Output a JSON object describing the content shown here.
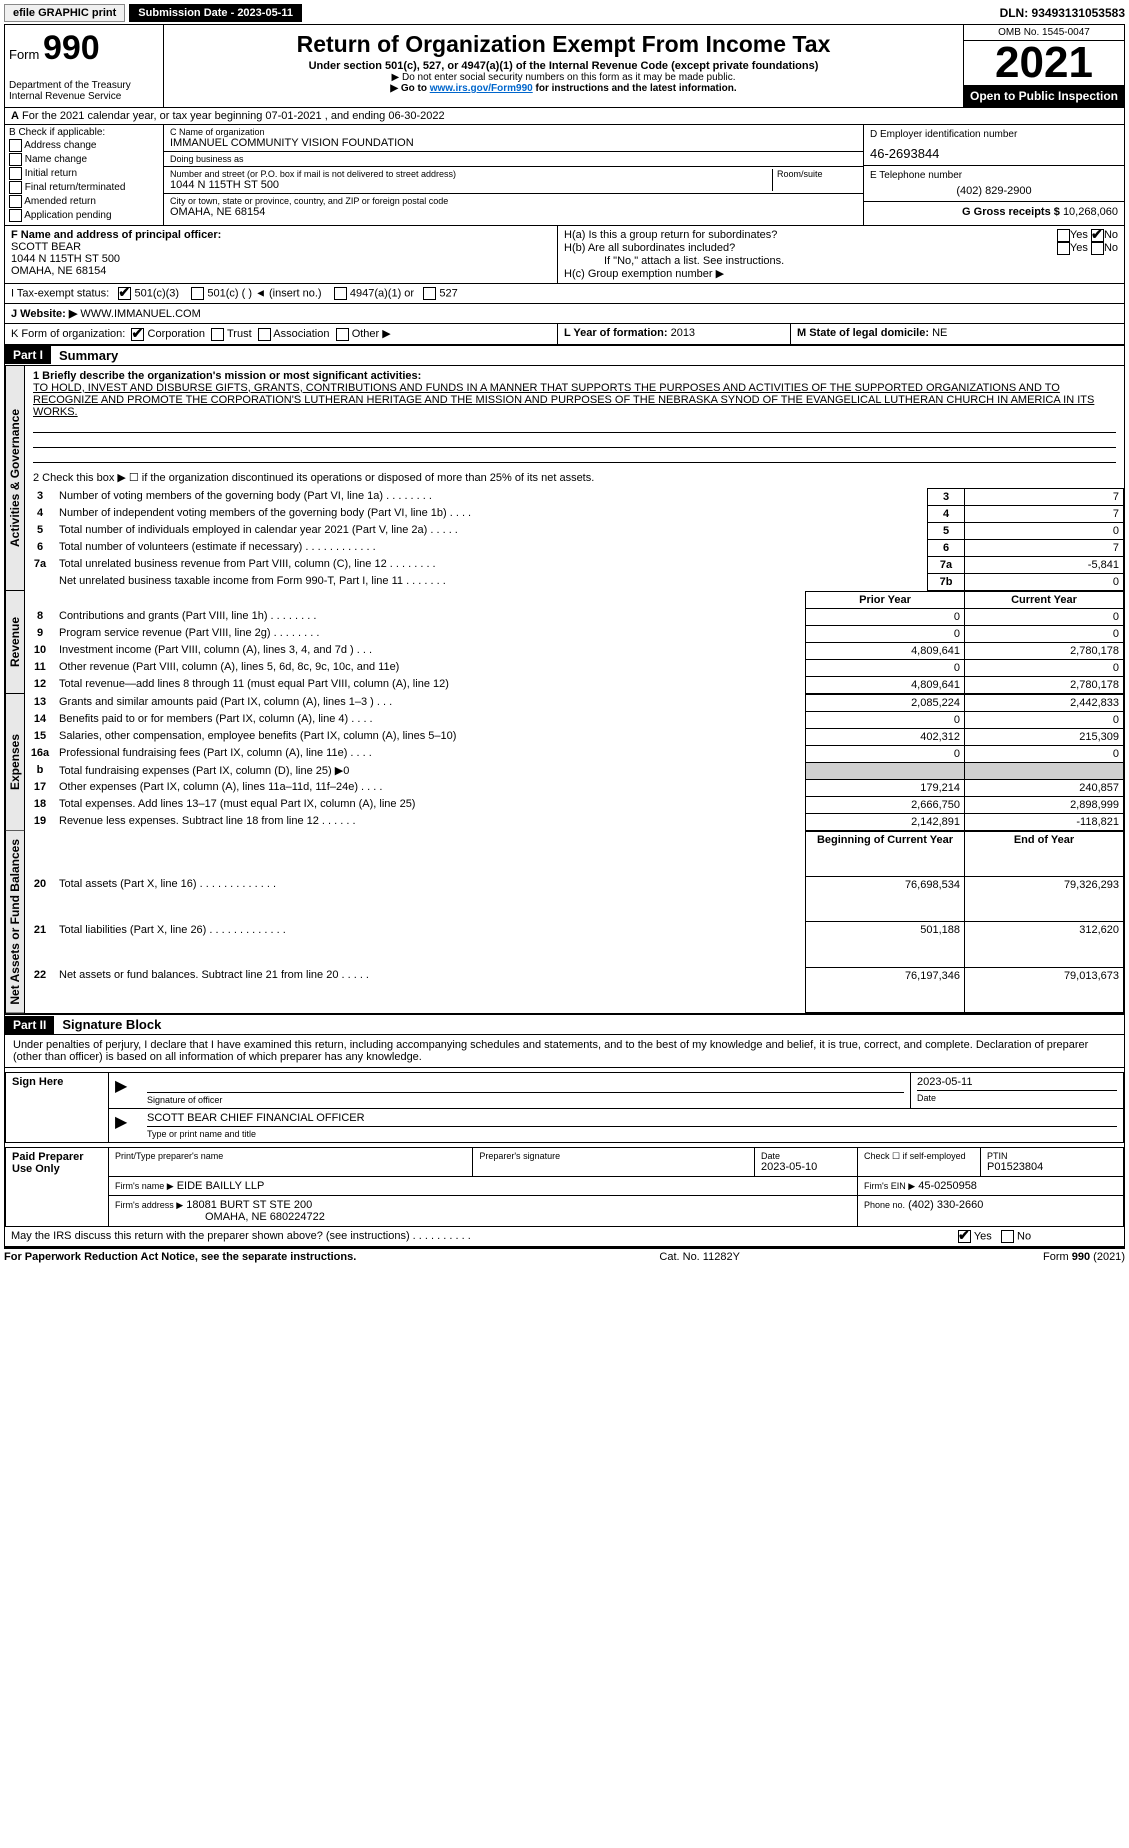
{
  "topbar": {
    "efile": "efile GRAPHIC print",
    "submission_btn": "Submission Date - 2023-05-11",
    "dln": "DLN: 93493131053583"
  },
  "header": {
    "form_word": "Form",
    "form_num": "990",
    "dept": "Department of the Treasury\nInternal Revenue Service",
    "title": "Return of Organization Exempt From Income Tax",
    "sub1": "Under section 501(c), 527, or 4947(a)(1) of the Internal Revenue Code (except private foundations)",
    "sub2a": "▶ Do not enter social security numbers on this form as it may be made public.",
    "sub2b_pre": "▶ Go to ",
    "sub2b_link": "www.irs.gov/Form990",
    "sub2b_post": " for instructions and the latest information.",
    "omb": "OMB No. 1545-0047",
    "year": "2021",
    "open": "Open to Public Inspection"
  },
  "row_a": "For the 2021 calendar year, or tax year beginning 07-01-2021   , and ending 06-30-2022",
  "col_b": {
    "hdr": "B Check if applicable:",
    "items": [
      "Address change",
      "Name change",
      "Initial return",
      "Final return/terminated",
      "Amended return",
      "Application pending"
    ]
  },
  "col_c": {
    "name_lbl": "C Name of organization",
    "name": "IMMANUEL COMMUNITY VISION FOUNDATION",
    "dba_lbl": "Doing business as",
    "dba": "",
    "addr_lbl": "Number and street (or P.O. box if mail is not delivered to street address)",
    "room_lbl": "Room/suite",
    "addr": "1044 N 115TH ST 500",
    "city_lbl": "City or town, state or province, country, and ZIP or foreign postal code",
    "city": "OMAHA, NE  68154"
  },
  "col_d": {
    "ein_lbl": "D Employer identification number",
    "ein": "46-2693844",
    "tel_lbl": "E Telephone number",
    "tel": "(402) 829-2900",
    "gross_lbl": "G Gross receipts $",
    "gross": "10,268,060"
  },
  "row_f": {
    "lbl": "F  Name and address of principal officer:",
    "name": "SCOTT BEAR",
    "addr1": "1044 N 115TH ST 500",
    "addr2": "OMAHA, NE  68154"
  },
  "row_h": {
    "a": "H(a)  Is this a group return for subordinates?",
    "b": "H(b)  Are all subordinates included?",
    "b_note": "If \"No,\" attach a list. See instructions.",
    "c": "H(c)  Group exemption number ▶",
    "yes": "Yes",
    "no": "No"
  },
  "row_i": {
    "lbl": "I  Tax-exempt status:",
    "opts": [
      "501(c)(3)",
      "501(c) (   ) ◄ (insert no.)",
      "4947(a)(1) or",
      "527"
    ]
  },
  "row_j": {
    "lbl": "J   Website: ▶",
    "val": " WWW.IMMANUEL.COM"
  },
  "row_k": {
    "lbl": "K Form of organization:",
    "opts": [
      "Corporation",
      "Trust",
      "Association",
      "Other ▶"
    ],
    "l_lbl": "L Year of formation:",
    "l_val": "2013",
    "m_lbl": "M State of legal domicile:",
    "m_val": "NE"
  },
  "part1": {
    "hdr": "Part I",
    "title": "Summary",
    "q1": "1  Briefly describe the organization's mission or most significant activities:",
    "mission": "TO HOLD, INVEST AND DISBURSE GIFTS, GRANTS, CONTRIBUTIONS AND FUNDS IN A MANNER THAT SUPPORTS THE PURPOSES AND ACTIVITIES OF THE SUPPORTED ORGANIZATIONS AND TO RECOGNIZE AND PROMOTE THE CORPORATION'S LUTHERAN HERITAGE AND THE MISSION AND PURPOSES OF THE NEBRASKA SYNOD OF THE EVANGELICAL LUTHERAN CHURCH IN AMERICA IN ITS WORKS.",
    "q2": "2   Check this box ▶ ☐  if the organization discontinued its operations or disposed of more than 25% of its net assets.",
    "prior_hdr": "Prior Year",
    "current_hdr": "Current Year",
    "boy_hdr": "Beginning of Current Year",
    "eoy_hdr": "End of Year",
    "tabs": {
      "gov": "Activities & Governance",
      "rev": "Revenue",
      "exp": "Expenses",
      "net": "Net Assets or Fund Balances"
    },
    "gov_rows": [
      {
        "n": "3",
        "d": "Number of voting members of the governing body (Part VI, line 1a)   .    .    .    .    .    .    .   .",
        "box": "3",
        "v": "7"
      },
      {
        "n": "4",
        "d": "Number of independent voting members of the governing body (Part VI, line 1b)    .    .    .    .",
        "box": "4",
        "v": "7"
      },
      {
        "n": "5",
        "d": "Total number of individuals employed in calendar year 2021 (Part V, line 2a)   .    .    .    .    .",
        "box": "5",
        "v": "0"
      },
      {
        "n": "6",
        "d": "Total number of volunteers (estimate if necessary)    .    .    .    .    .    .    .    .    .    .    .    .",
        "box": "6",
        "v": "7"
      },
      {
        "n": "7a",
        "d": "Total unrelated business revenue from Part VIII, column (C), line 12   .    .    .    .    .    .    .    .",
        "box": "7a",
        "v": "-5,841"
      },
      {
        "n": "",
        "d": "Net unrelated business taxable income from Form 990-T, Part I, line 11   .    .    .    .    .    .    .",
        "box": "7b",
        "v": "0"
      }
    ],
    "rev_rows": [
      {
        "n": "8",
        "d": "Contributions and grants (Part VIII, line 1h)   .    .    .    .    .    .    .    .",
        "p": "0",
        "c": "0"
      },
      {
        "n": "9",
        "d": "Program service revenue (Part VIII, line 2g)   .    .    .    .    .    .    .    .",
        "p": "0",
        "c": "0"
      },
      {
        "n": "10",
        "d": "Investment income (Part VIII, column (A), lines 3, 4, and 7d )    .    .    .",
        "p": "4,809,641",
        "c": "2,780,178"
      },
      {
        "n": "11",
        "d": "Other revenue (Part VIII, column (A), lines 5, 6d, 8c, 9c, 10c, and 11e)",
        "p": "0",
        "c": "0"
      },
      {
        "n": "12",
        "d": "Total revenue—add lines 8 through 11 (must equal Part VIII, column (A), line 12)",
        "p": "4,809,641",
        "c": "2,780,178"
      }
    ],
    "exp_rows": [
      {
        "n": "13",
        "d": "Grants and similar amounts paid (Part IX, column (A), lines 1–3 )   .    .    .",
        "p": "2,085,224",
        "c": "2,442,833"
      },
      {
        "n": "14",
        "d": "Benefits paid to or for members (Part IX, column (A), line 4)   .    .    .    .",
        "p": "0",
        "c": "0"
      },
      {
        "n": "15",
        "d": "Salaries, other compensation, employee benefits (Part IX, column (A), lines 5–10)",
        "p": "402,312",
        "c": "215,309"
      },
      {
        "n": "16a",
        "d": "Professional fundraising fees (Part IX, column (A), line 11e)   .    .    .    .",
        "p": "0",
        "c": "0"
      },
      {
        "n": "b",
        "d": "Total fundraising expenses (Part IX, column (D), line 25) ▶0",
        "p": "",
        "c": "",
        "shade": true
      },
      {
        "n": "17",
        "d": "Other expenses (Part IX, column (A), lines 11a–11d, 11f–24e)    .    .    .    .",
        "p": "179,214",
        "c": "240,857"
      },
      {
        "n": "18",
        "d": "Total expenses. Add lines 13–17 (must equal Part IX, column (A), line 25)",
        "p": "2,666,750",
        "c": "2,898,999"
      },
      {
        "n": "19",
        "d": "Revenue less expenses. Subtract line 18 from line 12   .    .    .    .    .    .",
        "p": "2,142,891",
        "c": "-118,821"
      }
    ],
    "net_rows": [
      {
        "n": "20",
        "d": "Total assets (Part X, line 16)   .    .    .    .    .    .    .    .    .    .    .    .    .",
        "p": "76,698,534",
        "c": "79,326,293"
      },
      {
        "n": "21",
        "d": "Total liabilities (Part X, line 26)   .    .    .    .    .    .    .    .    .    .    .    .    .",
        "p": "501,188",
        "c": "312,620"
      },
      {
        "n": "22",
        "d": "Net assets or fund balances. Subtract line 21 from line 20    .    .    .    .    .",
        "p": "76,197,346",
        "c": "79,013,673"
      }
    ]
  },
  "part2": {
    "hdr": "Part II",
    "title": "Signature Block",
    "decl": "Under penalties of perjury, I declare that I have examined this return, including accompanying schedules and statements, and to the best of my knowledge and belief, it is true, correct, and complete. Declaration of preparer (other than officer) is based on all information of which preparer has any knowledge."
  },
  "sign": {
    "left1": "Sign Here",
    "sig_lbl": "Signature of officer",
    "date_lbl": "Date",
    "date": "2023-05-11",
    "name": "SCOTT BEAR  CHIEF FINANCIAL OFFICER",
    "name_lbl": "Type or print name and title"
  },
  "preparer": {
    "left": "Paid Preparer Use Only",
    "r1": {
      "c1": "Print/Type preparer's name",
      "c2": "Preparer's signature",
      "c3": "Date",
      "c3v": "2023-05-10",
      "c4": "Check ☐ if self-employed",
      "c5": "PTIN",
      "c5v": "P01523804"
    },
    "r2": {
      "lbl": "Firm's name    ▶",
      "val": "EIDE BAILLY LLP",
      "ein_lbl": "Firm's EIN ▶",
      "ein": "45-0250958"
    },
    "r3": {
      "lbl": "Firm's address ▶",
      "val1": "18081 BURT ST STE 200",
      "val2": "OMAHA, NE   680224722",
      "ph_lbl": "Phone no.",
      "ph": "(402) 330-2660"
    }
  },
  "discuss": {
    "q": "May the IRS discuss this return with the preparer shown above? (see instructions)    .    .    .    .    .    .    .    .    .    .",
    "yes": "Yes",
    "no": "No"
  },
  "footer": {
    "l": "For Paperwork Reduction Act Notice, see the separate instructions.",
    "c": "Cat. No. 11282Y",
    "r": "Form 990 (2021)"
  }
}
